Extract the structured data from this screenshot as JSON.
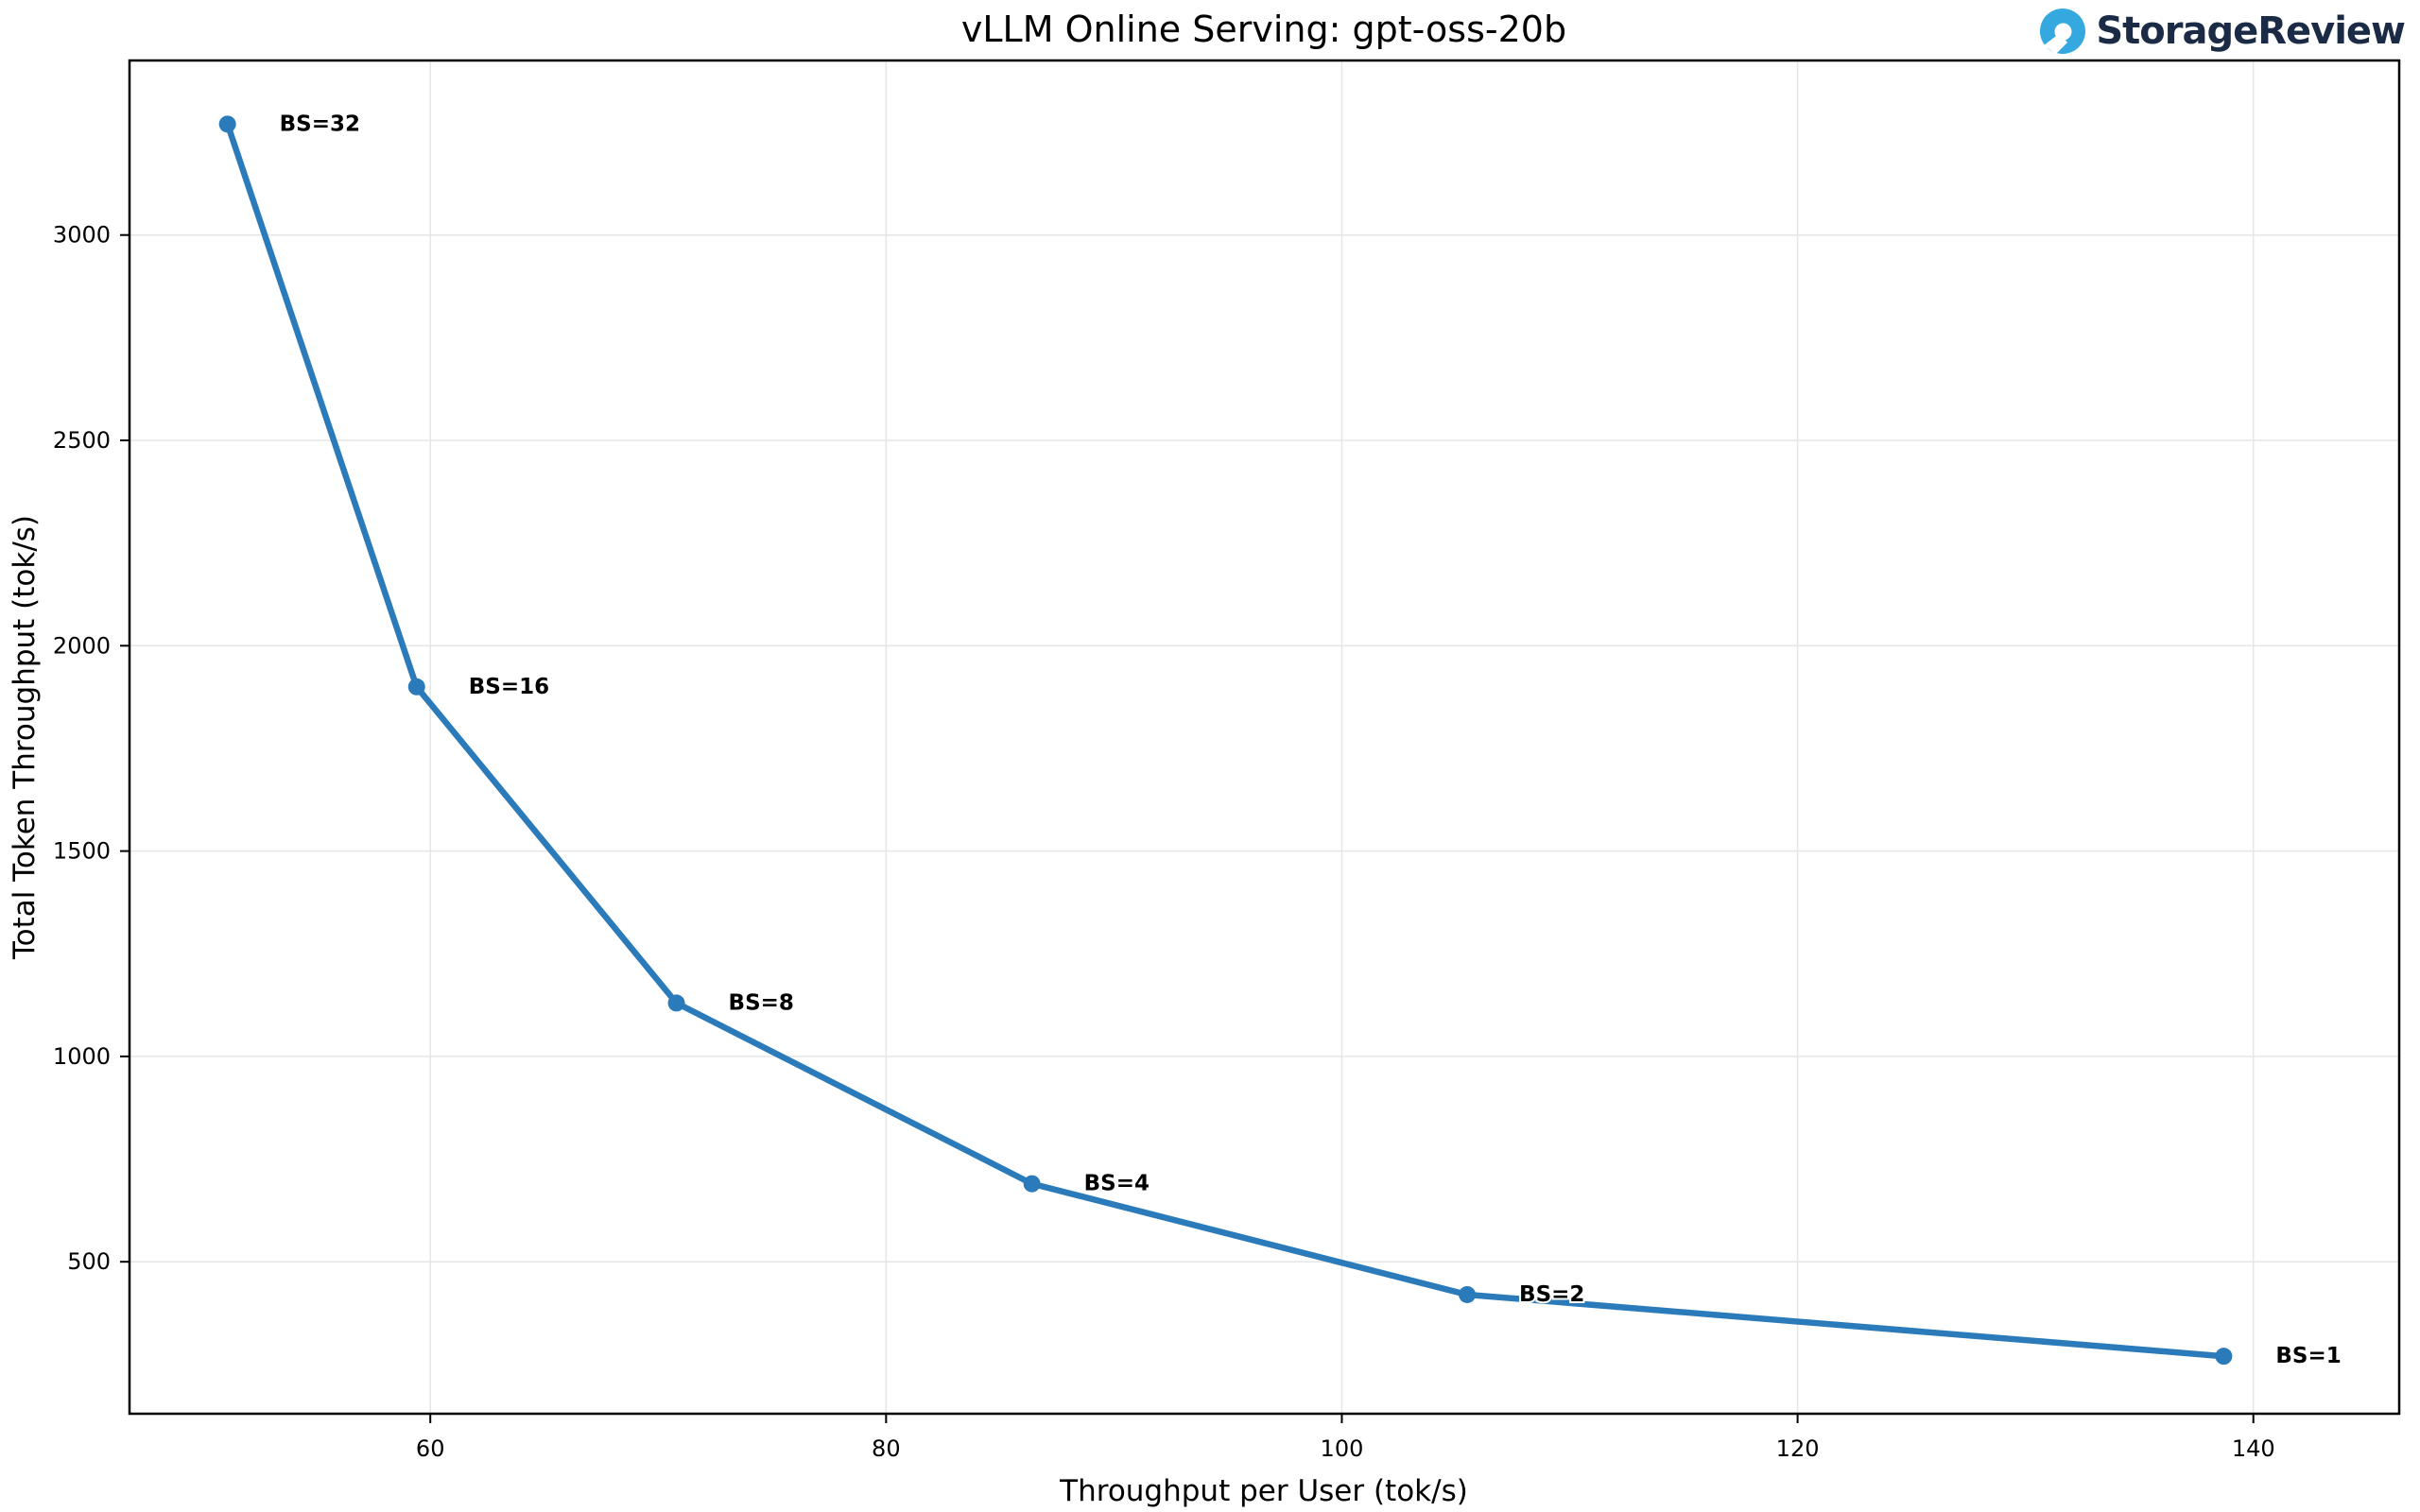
{
  "page": {
    "background": "#ffffff"
  },
  "branding": {
    "logo_text": "StorageReview",
    "logo_mark_color": "#35a8e0",
    "logo_text_color": "#1c2b45"
  },
  "chart_data": {
    "type": "line",
    "title": "vLLM Online Serving: gpt-oss-20b",
    "xlabel": "Throughput per User (tok/s)",
    "ylabel": "Total Token Throughput (tok/s)",
    "xlim": [
      46.8,
      146.4
    ],
    "ylim": [
      130,
      3425
    ],
    "x_ticks": [
      60,
      80,
      100,
      120,
      140
    ],
    "y_ticks": [
      500,
      1000,
      1500,
      2000,
      2500,
      3000
    ],
    "grid": true,
    "grid_color": "#e6e6e6",
    "spine_color": "#000000",
    "line_color": "#2b7bba",
    "legend": false,
    "series": [
      {
        "name": "gpt-oss-20b",
        "points": [
          {
            "label": "BS=32",
            "x": 51.1,
            "y": 3270
          },
          {
            "label": "BS=16",
            "x": 59.4,
            "y": 1900
          },
          {
            "label": "BS=8",
            "x": 70.8,
            "y": 1130
          },
          {
            "label": "BS=4",
            "x": 86.4,
            "y": 690
          },
          {
            "label": "BS=2",
            "x": 105.5,
            "y": 420
          },
          {
            "label": "BS=1",
            "x": 138.7,
            "y": 270
          }
        ]
      }
    ]
  }
}
